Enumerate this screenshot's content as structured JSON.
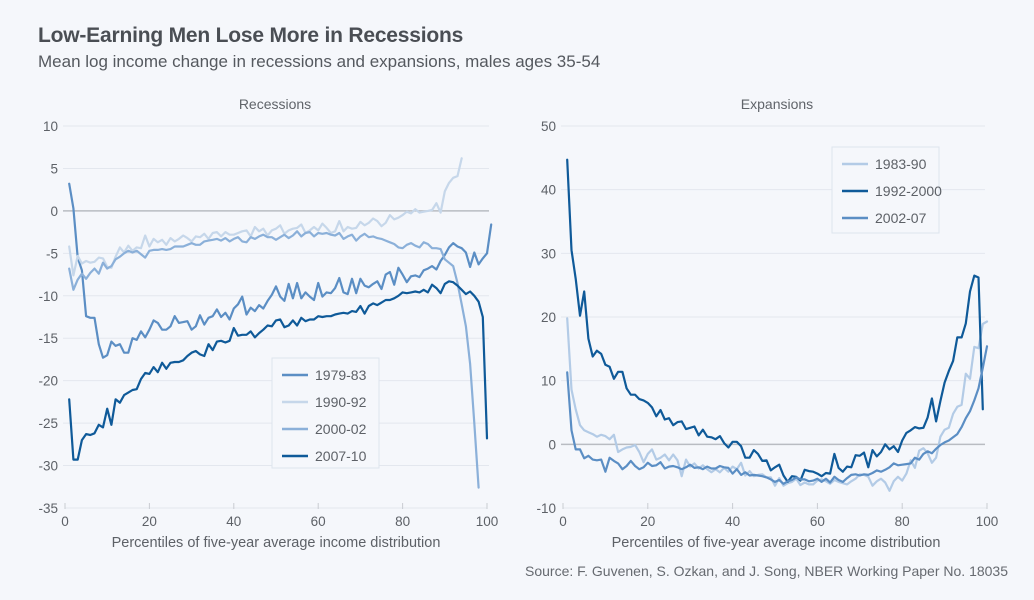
{
  "header": {
    "title": "Low-Earning Men Lose More in Recessions",
    "subtitle": "Mean log income change in recessions and expansions, males ages 35-54"
  },
  "source": "Source: F. Guvenen, S. Ozkan, and J. Song, NBER Working Paper No. 18035",
  "colors": {
    "background": "#f5f7fb",
    "grid": "#e3e7ee",
    "zero_line": "#b9bcc2",
    "text": "#5d6167"
  },
  "chart_data": [
    {
      "type": "line",
      "title": "Recessions",
      "xlabel": "Percentiles of five-year average income distribution",
      "ylabel": "",
      "xlim": [
        0,
        100
      ],
      "ylim": [
        -35,
        10
      ],
      "xticks": [
        "0",
        "20",
        "40",
        "60",
        "80",
        "100"
      ],
      "yticks": [
        "10",
        "5",
        "0",
        "-5",
        "-10",
        "-15",
        "-20",
        "-25",
        "-30",
        "-35"
      ],
      "grid": true,
      "legend": "center-right",
      "x_start": 1,
      "series": [
        {
          "name": "1979-83",
          "color": "#5b8ec4",
          "values": [
            3.2,
            0.3,
            -5.5,
            -7,
            -12.4,
            -12.6,
            -12.6,
            -15.7,
            -17.3,
            -17,
            -15.4,
            -15.9,
            -15.7,
            -16.7,
            -16.7,
            -15,
            -15.2,
            -14.2,
            -14.9,
            -14,
            -12.9,
            -13.2,
            -14,
            -14,
            -13.6,
            -12.4,
            -13.2,
            -13.1,
            -13,
            -14,
            -13.6,
            -12.3,
            -13.4,
            -12.6,
            -12.4,
            -11.6,
            -12.5,
            -12,
            -12.8,
            -11.5,
            -11,
            -10.1,
            -12.2,
            -11.4,
            -11.8,
            -11.1,
            -11.5,
            -10.6,
            -9.9,
            -8.9,
            -10.1,
            -10.6,
            -8.6,
            -10.3,
            -8.5,
            -10.3,
            -9.6,
            -10.1,
            -10.5,
            -8.5,
            -10.1,
            -9.6,
            -9.7,
            -9.1,
            -7.9,
            -9.6,
            -9.8,
            -8,
            -9.7,
            -8,
            -8.8,
            -9,
            -8.6,
            -8.3,
            -9.2,
            -7.5,
            -7.2,
            -8.7,
            -6.7,
            -7.5,
            -8.4,
            -7.7,
            -7.6,
            -7.8,
            -7,
            -6.8,
            -6.5,
            -6.9,
            -5.9,
            -5.2,
            -4.3,
            -3.8,
            -4.2,
            -4.4,
            -4.9,
            -6.6,
            -4.9,
            -6.3,
            -5.6,
            -5,
            -1.6
          ]
        },
        {
          "name": "1990-92",
          "color": "#c6d7ea",
          "values": [
            -4.2,
            -7.6,
            -5.3,
            -6.2,
            -5.9,
            -6.1,
            -6,
            -5.5,
            -5.6,
            -6.6,
            -6.7,
            -5.4,
            -4.3,
            -4.9,
            -4.1,
            -4.7,
            -4.3,
            -4.4,
            -2.9,
            -4.2,
            -3.3,
            -3.7,
            -3.4,
            -4,
            -3.2,
            -3.6,
            -3.3,
            -2.9,
            -3.2,
            -3.6,
            -3,
            -3.1,
            -2.7,
            -3.3,
            -2.6,
            -2.5,
            -3,
            -2.5,
            -2.8,
            -2.8,
            -2.6,
            -2.4,
            -2.3,
            -3,
            -1.9,
            -2.4,
            -2.1,
            -2.9,
            -2.3,
            -2.1,
            -1.7,
            -2.7,
            -2.3,
            -2.1,
            -2,
            -1.6,
            -2.6,
            -2.3,
            -1.9,
            -2.3,
            -1.5,
            -2,
            -2.6,
            -2.4,
            -1.2,
            -2.4,
            -1.9,
            -2.1,
            -2,
            -1.3,
            -1.7,
            -1.4,
            -0.9,
            -1.2,
            -1.8,
            -1.4,
            -0.5,
            -1,
            -0.8,
            -0.5,
            -0.1,
            -0.3,
            0.2,
            -0.2,
            -0.1,
            0,
            0.1,
            0.9,
            -0.2,
            2.3,
            3.3,
            3.9,
            4.1,
            6.2
          ]
        },
        {
          "name": "2000-02",
          "color": "#8bb0d9",
          "values": [
            -6.8,
            -9.3,
            -8.1,
            -7.4,
            -8,
            -7.3,
            -6.8,
            -7.4,
            -6.1,
            -6.8,
            -6.5,
            -5.7,
            -5.4,
            -5,
            -4.7,
            -4.9,
            -4.7,
            -5.1,
            -5.5,
            -4.7,
            -4.6,
            -4.6,
            -4.5,
            -4.6,
            -4.5,
            -4.2,
            -4.2,
            -4.2,
            -4,
            -3.8,
            -4,
            -4,
            -3.6,
            -3.5,
            -3.4,
            -3.3,
            -3.5,
            -3.2,
            -3.6,
            -3.3,
            -3.1,
            -3.6,
            -3.7,
            -3.1,
            -3.3,
            -3,
            -2.8,
            -3.1,
            -3.1,
            -3.4,
            -3.1,
            -2.8,
            -3.2,
            -2.9,
            -2.4,
            -3,
            -2.6,
            -2.5,
            -3,
            -2.6,
            -2.7,
            -2.6,
            -2.8,
            -2.9,
            -2.6,
            -3.3,
            -3,
            -2.8,
            -3.5,
            -3,
            -2.7,
            -3.1,
            -3,
            -3.2,
            -3.3,
            -3.5,
            -3.7,
            -3.9,
            -4.3,
            -4.4,
            -4,
            -3.8,
            -4.1,
            -4.3,
            -3.7,
            -3.9,
            -4.4,
            -4.4,
            -4.5,
            -5.7,
            -6.1,
            -6.5,
            -8.5,
            -11,
            -13.6,
            -18,
            -25,
            -32.6
          ]
        },
        {
          "name": "2007-10",
          "color": "#0f5a99",
          "values": [
            -22.2,
            -29.3,
            -29.3,
            -27,
            -26.3,
            -26.4,
            -26.2,
            -25.2,
            -25.5,
            -23.3,
            -25.2,
            -22.2,
            -22.6,
            -21.7,
            -21.4,
            -21.1,
            -21,
            -19.8,
            -19.1,
            -19.2,
            -18.4,
            -19,
            -17.9,
            -18.6,
            -17.9,
            -17.8,
            -17.8,
            -17.6,
            -17.1,
            -16.7,
            -16.5,
            -16.9,
            -17.1,
            -15.7,
            -16.4,
            -15.4,
            -15.3,
            -15.5,
            -15.3,
            -13.8,
            -14.7,
            -14.6,
            -14.6,
            -14.2,
            -14.9,
            -14.4,
            -14,
            -13.5,
            -13.6,
            -12.9,
            -12.8,
            -13.7,
            -13.5,
            -12.9,
            -13.5,
            -12.6,
            -13,
            -12.8,
            -12.8,
            -12.4,
            -12.5,
            -12.4,
            -12.4,
            -12.2,
            -12.1,
            -12,
            -12.1,
            -11.8,
            -11.9,
            -11.2,
            -12.1,
            -11.2,
            -10.9,
            -11.1,
            -10.8,
            -10.5,
            -10.5,
            -10.3,
            -10,
            -9.6,
            -9.7,
            -9.6,
            -9.5,
            -9.6,
            -9.3,
            -9.6,
            -8.7,
            -9.1,
            -9.7,
            -8.6,
            -8.3,
            -8.4,
            -8.8,
            -9.3,
            -9.8,
            -9.5,
            -10,
            -10.7,
            -12.5,
            -26.8
          ]
        }
      ]
    },
    {
      "type": "line",
      "title": "Expansions",
      "xlabel": "Percentiles of five-year average income distribution",
      "ylabel": "",
      "xlim": [
        0,
        100
      ],
      "ylim": [
        -10,
        50
      ],
      "xticks": [
        "0",
        "20",
        "40",
        "60",
        "80",
        "100"
      ],
      "yticks": [
        "50",
        "40",
        "30",
        "20",
        "10",
        "0",
        "-10"
      ],
      "grid": true,
      "legend": "top-right",
      "x_start": 1,
      "series": [
        {
          "name": "1983-90",
          "color": "#b3cbe6",
          "values": [
            19.8,
            8.6,
            5.5,
            3,
            2.2,
            1.9,
            1.6,
            1.2,
            1.5,
            1.3,
            0.8,
            1.5,
            -1.2,
            -0.8,
            -0.5,
            -0.4,
            -0.1,
            -1.2,
            -2.8,
            -1.5,
            -0.8,
            -2.4,
            -2.1,
            -1.6,
            -2.5,
            -1.6,
            -2.5,
            -5,
            -2.4,
            -3.5,
            -3,
            -3.8,
            -3.3,
            -3.9,
            -4.4,
            -3.9,
            -4.4,
            -3.7,
            -4.3,
            -3.5,
            -3.9,
            -2.9,
            -4.9,
            -4.2,
            -5,
            -4.8,
            -4.7,
            -5.2,
            -5.2,
            -6.5,
            -5.3,
            -6.5,
            -6.1,
            -5.9,
            -5.4,
            -6.4,
            -6,
            -6.3,
            -6.3,
            -5.7,
            -5.5,
            -5.8,
            -6.2,
            -5.6,
            -5.9,
            -6.1,
            -6.3,
            -5.8,
            -5.4,
            -4.7,
            -4.8,
            -5.1,
            -6.5,
            -5.8,
            -5.4,
            -6,
            -7.3,
            -5.8,
            -5.1,
            -5.7,
            -4.6,
            -2.5,
            -3.7,
            -1,
            -0.6,
            -1.4,
            -2.9,
            -2.1,
            1.2,
            2.3,
            2.6,
            4.8,
            5.9,
            6.2,
            11.1,
            10.3,
            15.3,
            15.1,
            18.9,
            19.3
          ]
        },
        {
          "name": "1992-2000",
          "color": "#0f5a99",
          "values": [
            44.7,
            30.5,
            26,
            20.2,
            24,
            16.6,
            13.8,
            14.7,
            14.2,
            12.5,
            12.2,
            10.3,
            11.4,
            11.4,
            8.8,
            7.8,
            7.8,
            7.1,
            6.9,
            6.5,
            5.8,
            4.4,
            5.4,
            3.9,
            4.1,
            3,
            3.5,
            3.6,
            2.4,
            2.6,
            2.8,
            1.4,
            2.3,
            1.2,
            1.1,
            0.8,
            1.3,
            0.2,
            -0.5,
            0.4,
            0.4,
            -0.3,
            -2.1,
            -2.1,
            -0.9,
            -1.5,
            -2.6,
            -2.5,
            -4.1,
            -3.6,
            -3.2,
            -4.9,
            -5.9,
            -5,
            -5.1,
            -5.7,
            -4,
            -4.2,
            -4.3,
            -4.6,
            -5,
            -4.5,
            -4.6,
            -1.5,
            -3.7,
            -4.3,
            -3.5,
            -3.6,
            -1.7,
            -1.8,
            -1.3,
            -3.6,
            -0.9,
            -1.9,
            -1.2,
            0,
            -0.8,
            -0.3,
            -1.2,
            0.6,
            1.8,
            2.2,
            2.7,
            2.5,
            2.6,
            4.2,
            7.2,
            3.6,
            6.8,
            9.7,
            11.5,
            13.1,
            16.8,
            16.8,
            19,
            24,
            26.5,
            26.2,
            5.5
          ]
        },
        {
          "name": "2002-07",
          "color": "#5b8ec4",
          "values": [
            11.3,
            2.2,
            -0.8,
            -0.8,
            -2.2,
            -1.8,
            -2.4,
            -2.5,
            -2.4,
            -4.3,
            -2.1,
            -2.6,
            -3,
            -3.9,
            -3.4,
            -2.6,
            -3.4,
            -3.9,
            -3.6,
            -2.9,
            -3.4,
            -3.3,
            -2.8,
            -3.8,
            -3.5,
            -3.4,
            -3.6,
            -3.9,
            -3.6,
            -3.2,
            -3.7,
            -3.6,
            -3.9,
            -3.5,
            -3.8,
            -3.8,
            -3.4,
            -3.6,
            -3.7,
            -4.6,
            -3.9,
            -4.8,
            -4.4,
            -4.9,
            -4.8,
            -4.9,
            -5,
            -5.2,
            -5.5,
            -5.9,
            -5.6,
            -6.2,
            -5.8,
            -5.6,
            -5.2,
            -5.5,
            -5.5,
            -5.8,
            -5.7,
            -5.4,
            -5.9,
            -5.4,
            -6,
            -5.1,
            -5.6,
            -5.9,
            -5.3,
            -4.8,
            -4.7,
            -4.9,
            -4.7,
            -4.8,
            -4.5,
            -4.1,
            -4.3,
            -4,
            -3.6,
            -3,
            -3.3,
            -3.2,
            -3.1,
            -3,
            -2.1,
            -2.4,
            -1.5,
            -1.1,
            -1.4,
            -0.7,
            -0.1,
            0.3,
            0.6,
            1.1,
            1.6,
            2.7,
            4.1,
            5.2,
            6.9,
            8.8,
            12,
            15.4
          ]
        }
      ]
    }
  ]
}
